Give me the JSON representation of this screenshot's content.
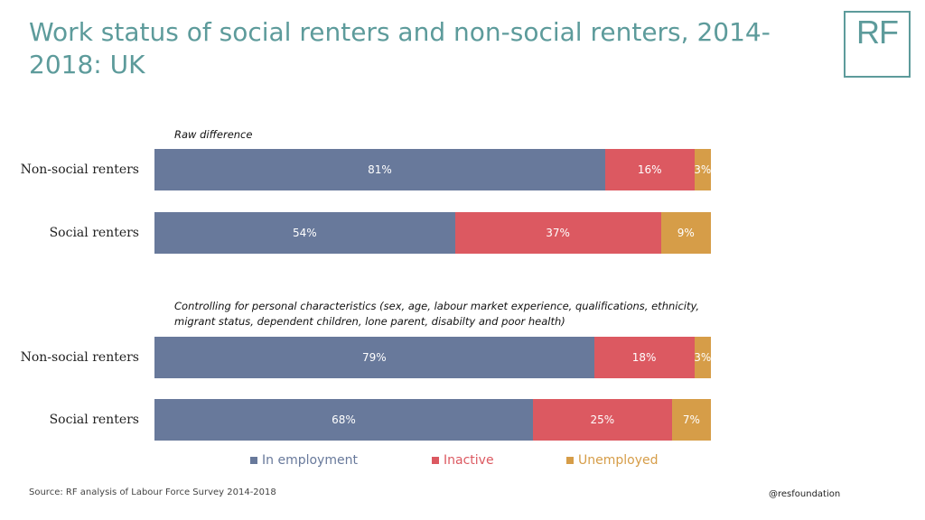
{
  "title": "Work status of social renters and non-social renters, 2014-2018: UK",
  "logo_text": "RF",
  "source": "Source: RF analysis of Labour Force Survey 2014-2018",
  "handle": "@resfoundation",
  "colors": {
    "title": "#5d9b9b",
    "employment": "#68799b",
    "inactive": "#dc5961",
    "unemployed": "#d69d48"
  },
  "chart_data": {
    "type": "bar",
    "orientation": "horizontal",
    "stacked": true,
    "unit": "%",
    "xlim": [
      0,
      100
    ],
    "grid": false,
    "legend_position": "bottom",
    "legend": [
      {
        "key": "employment",
        "name": "In employment"
      },
      {
        "key": "inactive",
        "name": "Inactive"
      },
      {
        "key": "unemployed",
        "name": "Unemployed"
      }
    ],
    "panels": [
      {
        "caption": "Raw difference",
        "rows": [
          {
            "category": "Non-social renters",
            "values": [
              81,
              16,
              3
            ],
            "labels": [
              "81%",
              "16%",
              "3%"
            ]
          },
          {
            "category": "Social renters",
            "values": [
              54,
              37,
              9
            ],
            "labels": [
              "54%",
              "37%",
              "9%"
            ]
          }
        ]
      },
      {
        "caption": "Controlling for personal characteristics (sex, age, labour market experience, qualifications, ethnicity, migrant status, dependent children, lone parent, disabilty and poor health)",
        "rows": [
          {
            "category": "Non-social renters",
            "values": [
              79,
              18,
              3
            ],
            "labels": [
              "79%",
              "18%",
              "3%"
            ]
          },
          {
            "category": "Social renters",
            "values": [
              68,
              25,
              7
            ],
            "labels": [
              "68%",
              "25%",
              "7%"
            ]
          }
        ]
      }
    ]
  }
}
